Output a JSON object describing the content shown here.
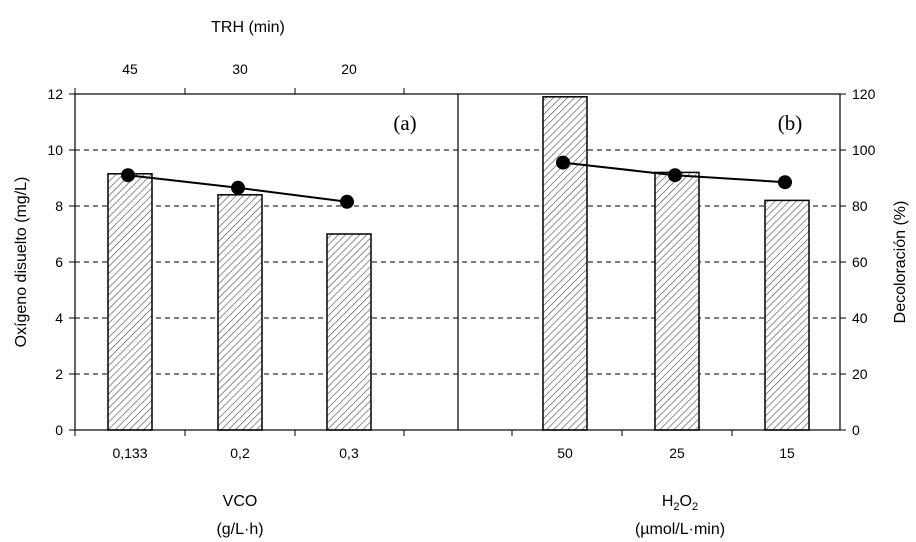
{
  "chart_data": {
    "type": "bar",
    "top_axis": {
      "title": "TRH (min)",
      "labels": [
        "45",
        "30",
        "20"
      ]
    },
    "y_left": {
      "label": "Oxígeno disuelto (mg/L)",
      "ylim": [
        0,
        12
      ],
      "ticks": [
        "0",
        "2",
        "4",
        "6",
        "8",
        "10",
        "12"
      ]
    },
    "y_right": {
      "label": "Decoloración (%)",
      "ylim": [
        0,
        120
      ],
      "ticks": [
        "0",
        "20",
        "40",
        "60",
        "80",
        "100",
        "120"
      ]
    },
    "grid": "horizontal dashed",
    "panels": [
      {
        "label": "(a)",
        "categories": [
          "0,133",
          "0,2",
          "0,3"
        ],
        "xlabel_line1": "VCO",
        "xlabel_line2": "(g/L·h)",
        "bar_values": [
          9.15,
          8.4,
          7.0
        ],
        "line_values": [
          91,
          86.5,
          81.5
        ]
      },
      {
        "label": "(b)",
        "categories": [
          "50",
          "25",
          "15"
        ],
        "xlabel_main": "H",
        "xlabel_sub": "2",
        "xlabel_main2": "O",
        "xlabel_sub2": "2",
        "xlabel_line2": "(µmol/L·min)",
        "bar_values": [
          11.9,
          9.2,
          8.2
        ],
        "line_values": [
          95.5,
          91,
          88.5
        ]
      }
    ]
  }
}
